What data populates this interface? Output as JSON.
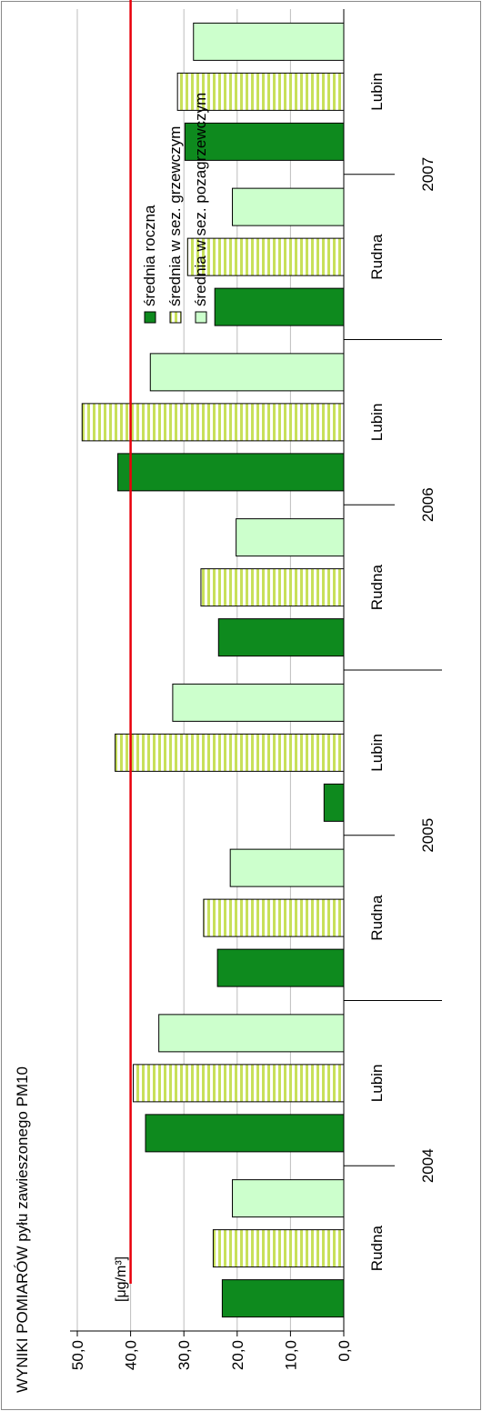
{
  "chart_data": {
    "type": "bar",
    "orientation": "rotated-90",
    "title": "WYNIKI POMIARÓW pyłu zawieszonego PM10",
    "unit_label": "[μg/m³]",
    "ylim": [
      0,
      50
    ],
    "yticks": [
      "0,0",
      "10,0",
      "20,0",
      "30,0",
      "40,0",
      "50,0"
    ],
    "grid": true,
    "limit_line": {
      "value": 40,
      "color": "#e8000b"
    },
    "groups": [
      {
        "year": "2004",
        "sites": [
          "Rudna",
          "Lubin"
        ]
      },
      {
        "year": "2005",
        "sites": [
          "Rudna",
          "Lubin"
        ]
      },
      {
        "year": "2006",
        "sites": [
          "Rudna",
          "Lubin"
        ]
      },
      {
        "year": "2007",
        "sites": [
          "Rudna",
          "Lubin"
        ]
      }
    ],
    "categories": [
      "Rudna",
      "Lubin",
      "Rudna",
      "Lubin",
      "Rudna",
      "Lubin",
      "Rudna",
      "Lubin"
    ],
    "series": [
      {
        "name": "średnia roczna",
        "color": "#0e8a1e",
        "pattern": "solid",
        "values": [
          22.8,
          37.2,
          23.7,
          3.7,
          23.5,
          42.4,
          24.2,
          29.8
        ]
      },
      {
        "name": "średnia w sez. grzewczym",
        "color": "#c8e05a",
        "pattern": "striped",
        "values": [
          24.5,
          39.5,
          26.3,
          42.9,
          26.8,
          49.1,
          29.3,
          31.2
        ]
      },
      {
        "name": "średnia w sez. pozagrzewczym",
        "color": "#ccffcc",
        "pattern": "solid",
        "values": [
          20.9,
          34.7,
          21.3,
          32.1,
          20.2,
          36.3,
          20.9,
          28.2
        ]
      }
    ],
    "legend": {
      "placement": "top-right"
    }
  }
}
